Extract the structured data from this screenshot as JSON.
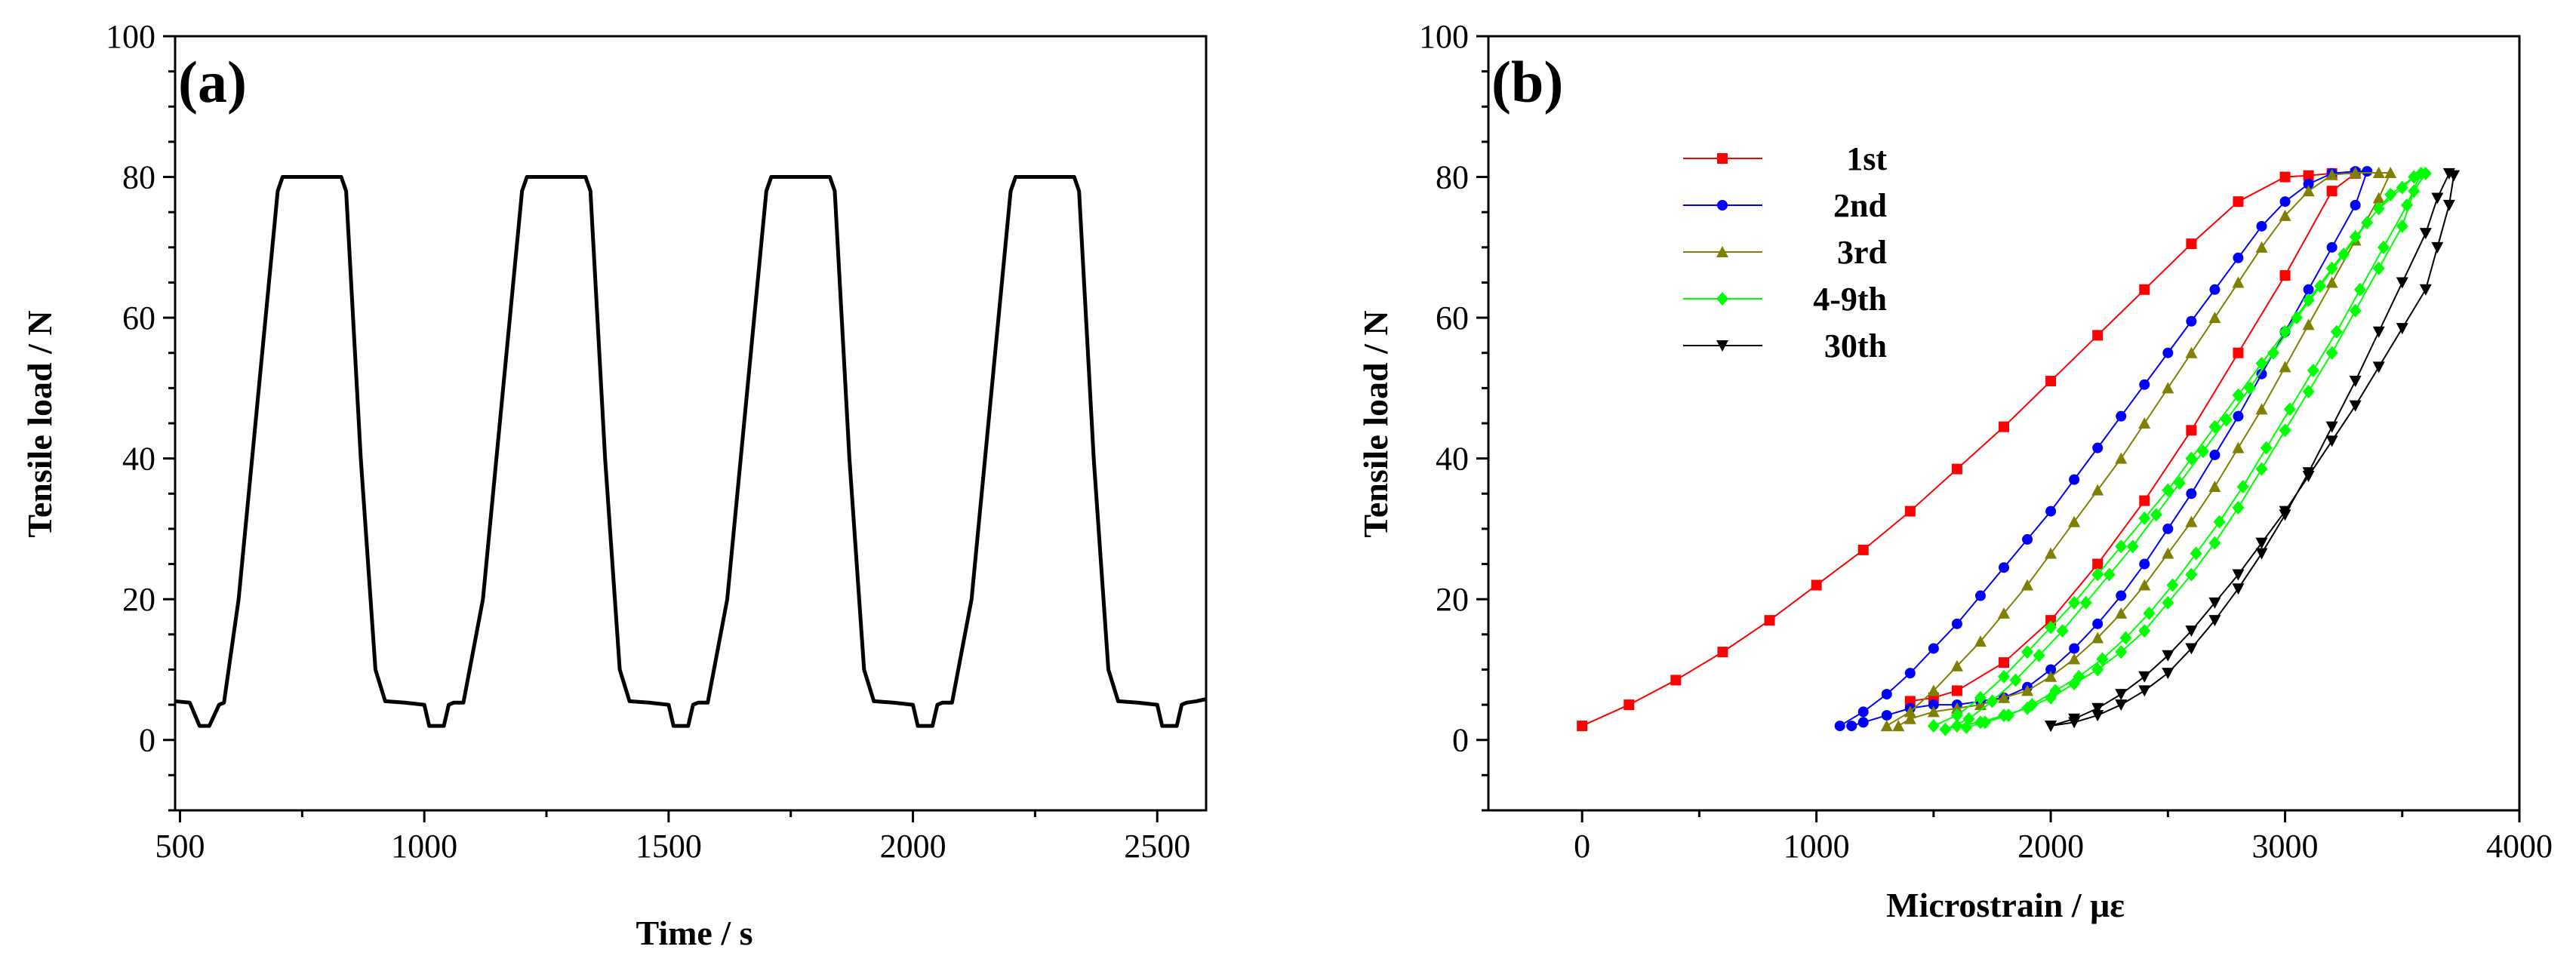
{
  "chart_data": [
    {
      "type": "line",
      "panel_label": "(a)",
      "xlabel": "Time /  s",
      "ylabel": "Tensile load / N",
      "xlim": [
        490,
        2600
      ],
      "ylim": [
        -10,
        100
      ],
      "xticks": [
        500,
        1000,
        1500,
        2000,
        2500
      ],
      "yticks": [
        0,
        20,
        40,
        60,
        80,
        100
      ],
      "xtick_labels": [
        "500",
        "1000",
        "1500",
        "2000",
        "2500"
      ],
      "ytick_labels": [
        "0",
        "20",
        "40",
        "60",
        "80",
        "100"
      ],
      "series": [
        {
          "name": "load",
          "color": "#000000",
          "x": [
            490,
            520,
            540,
            560,
            580,
            590,
            620,
            700,
            710,
            830,
            840,
            870,
            900,
            920,
            960,
            1000,
            1010,
            1040,
            1050,
            1060,
            1080,
            1120,
            1200,
            1210,
            1330,
            1340,
            1370,
            1400,
            1420,
            1460,
            1500,
            1510,
            1540,
            1550,
            1560,
            1580,
            1620,
            1700,
            1710,
            1830,
            1840,
            1870,
            1900,
            1920,
            1960,
            2000,
            2010,
            2040,
            2050,
            2060,
            2080,
            2120,
            2200,
            2210,
            2330,
            2340,
            2370,
            2400,
            2420,
            2460,
            2500,
            2510,
            2540,
            2550,
            2560,
            2580,
            2600
          ],
          "y": [
            5.5,
            5.3,
            2,
            2,
            5,
            5.3,
            20,
            78,
            80,
            80,
            78,
            40,
            10,
            5.5,
            5.3,
            5,
            2,
            2,
            5,
            5.3,
            5.3,
            20,
            78,
            80,
            80,
            78,
            40,
            10,
            5.5,
            5.3,
            5,
            2,
            2,
            5,
            5.3,
            5.3,
            20,
            78,
            80,
            80,
            78,
            40,
            10,
            5.5,
            5.3,
            5,
            2,
            2,
            5,
            5.3,
            5.3,
            20,
            78,
            80,
            80,
            78,
            40,
            10,
            5.5,
            5.3,
            5,
            2,
            2,
            5,
            5.3,
            5.5,
            5.8
          ]
        }
      ]
    },
    {
      "type": "line",
      "panel_label": "(b)",
      "xlabel": "Microstrain /  με",
      "ylabel": "Tensile load / N",
      "xlim": [
        -400,
        4000
      ],
      "ylim": [
        -10,
        100
      ],
      "xticks": [
        0,
        1000,
        2000,
        3000,
        4000
      ],
      "yticks": [
        0,
        20,
        40,
        60,
        80,
        100
      ],
      "xtick_labels": [
        "0",
        "1000",
        "2000",
        "3000",
        "4000"
      ],
      "ytick_labels": [
        "0",
        "20",
        "40",
        "60",
        "80",
        "100"
      ],
      "legend_position": "top-left",
      "series": [
        {
          "name": "1st",
          "color": "#ff0000",
          "marker": "square",
          "x": [
            0,
            200,
            400,
            600,
            800,
            1000,
            1200,
            1400,
            1600,
            1800,
            2000,
            2200,
            2400,
            2600,
            2800,
            3000,
            3100,
            3200,
            3300,
            3200,
            3000,
            2800,
            2600,
            2400,
            2200,
            2000,
            1800,
            1600,
            1500,
            1400
          ],
          "y": [
            2,
            5,
            8.5,
            12.5,
            17,
            22,
            27,
            32.5,
            38.5,
            44.5,
            51,
            57.5,
            64,
            70.5,
            76.5,
            80,
            80.2,
            80.5,
            80.5,
            78,
            66,
            55,
            44,
            34,
            25,
            17,
            11,
            7,
            6,
            5.5
          ]
        },
        {
          "name": "2nd",
          "color": "#0000ff",
          "marker": "circle",
          "x": [
            1100,
            1200,
            1300,
            1400,
            1500,
            1600,
            1700,
            1800,
            1900,
            2000,
            2100,
            2200,
            2300,
            2400,
            2500,
            2600,
            2700,
            2800,
            2900,
            3000,
            3100,
            3200,
            3300,
            3350,
            3300,
            3200,
            3100,
            3000,
            2900,
            2800,
            2700,
            2600,
            2500,
            2400,
            2300,
            2200,
            2100,
            2000,
            1900,
            1800,
            1700,
            1600,
            1500,
            1400,
            1300,
            1200,
            1150
          ],
          "y": [
            2,
            4,
            6.5,
            9.5,
            13,
            16.5,
            20.5,
            24.5,
            28.5,
            32.5,
            37,
            41.5,
            46,
            50.5,
            55,
            59.5,
            64,
            68.5,
            73,
            76.5,
            79,
            80.5,
            80.8,
            80.8,
            76,
            70,
            64,
            58,
            52,
            46,
            40.5,
            35,
            30,
            25,
            20.5,
            16.5,
            13,
            10,
            7.5,
            6,
            5.5,
            5,
            5,
            4.5,
            3.5,
            2.5,
            2
          ]
        },
        {
          "name": "3rd",
          "color": "#808000",
          "marker": "triangle-up",
          "x": [
            1300,
            1400,
            1500,
            1600,
            1700,
            1800,
            1900,
            2000,
            2100,
            2200,
            2300,
            2400,
            2500,
            2600,
            2700,
            2800,
            2900,
            3000,
            3100,
            3200,
            3300,
            3400,
            3450,
            3400,
            3300,
            3200,
            3100,
            3000,
            2900,
            2800,
            2700,
            2600,
            2500,
            2400,
            2300,
            2200,
            2100,
            2000,
            1900,
            1800,
            1700,
            1600,
            1500,
            1400,
            1350
          ],
          "y": [
            2,
            4,
            7,
            10.5,
            14,
            18,
            22,
            26.5,
            31,
            35.5,
            40,
            45,
            50,
            55,
            60,
            65,
            70,
            74.5,
            78,
            80.3,
            80.6,
            80.6,
            80.6,
            77,
            71,
            65,
            59,
            53,
            47,
            41.5,
            36,
            31,
            26.5,
            22,
            18,
            14.5,
            11.5,
            9,
            7,
            6,
            5,
            4.5,
            4,
            3,
            2
          ]
        },
        {
          "name": "4-9th",
          "color": "#00ff00",
          "marker": "diamond",
          "x": [
            1500,
            1600,
            1700,
            1800,
            1900,
            2000,
            2100,
            2200,
            2300,
            2400,
            2500,
            2600,
            2700,
            2800,
            2900,
            3000,
            3100,
            3200,
            3300,
            3400,
            3500,
            3550,
            3600,
            3550,
            3500,
            3400,
            3300,
            3200,
            3100,
            3000,
            2900,
            2800,
            2700,
            2600,
            2500,
            2400,
            2300,
            2200,
            2100,
            2000,
            1900,
            1800,
            1700,
            1600,
            1550,
            1650,
            1750,
            1850,
            1950,
            2050,
            2150,
            2250,
            2350,
            2450,
            2550,
            2650,
            2750,
            2850,
            2950,
            3050,
            3150,
            3250,
            3350,
            3450,
            3550,
            3580,
            3520,
            3420,
            3320,
            3220,
            3120,
            3020,
            2920,
            2820,
            2720,
            2620,
            2520,
            2420,
            2320,
            2220,
            2120,
            2020,
            1920,
            1820,
            1720,
            1640
          ],
          "y": [
            2,
            3.5,
            6,
            9,
            12.5,
            16,
            19.5,
            23.5,
            27.5,
            31.5,
            35.5,
            40,
            44.5,
            49,
            53.5,
            58,
            62.5,
            67,
            71.5,
            75.5,
            78.5,
            80,
            80.5,
            78,
            73,
            67,
            61,
            55,
            49.5,
            44,
            38.5,
            33,
            28,
            23.5,
            19.5,
            15.5,
            12.5,
            10,
            8,
            6,
            4.5,
            3.5,
            2.5,
            2,
            1.5,
            3,
            5.5,
            8.5,
            12,
            15.5,
            19.5,
            23.5,
            27.5,
            32,
            36.5,
            41,
            45.5,
            50,
            55,
            60,
            64.5,
            69,
            73.5,
            77.5,
            80,
            80.5,
            76,
            70,
            64,
            58,
            52.5,
            47,
            41.5,
            36,
            31,
            26.5,
            22,
            18,
            14.5,
            11.5,
            9,
            7,
            5,
            3.5,
            2.5,
            1.8
          ]
        },
        {
          "name": "30th",
          "color": "#000000",
          "marker": "triangle-down",
          "x": [
            2000,
            2100,
            2200,
            2300,
            2400,
            2500,
            2600,
            2700,
            2800,
            2900,
            3000,
            3100,
            3200,
            3300,
            3400,
            3500,
            3600,
            3650,
            3700,
            3720,
            3700,
            3650,
            3600,
            3500,
            3400,
            3300,
            3200,
            3100,
            3000,
            2900,
            2800,
            2700,
            2600,
            2500,
            2400,
            2300,
            2200,
            2100,
            2000
          ],
          "y": [
            2,
            3,
            4.5,
            6.5,
            9,
            12,
            15.5,
            19.5,
            23.5,
            28,
            32.5,
            37.5,
            42.5,
            47.5,
            53,
            58.5,
            64,
            70,
            76,
            80.2,
            80.5,
            77,
            72,
            65,
            58,
            51,
            44.5,
            38,
            32,
            26.5,
            21.5,
            17,
            13,
            9.5,
            7,
            5,
            3.5,
            2.5,
            2
          ]
        }
      ]
    }
  ]
}
